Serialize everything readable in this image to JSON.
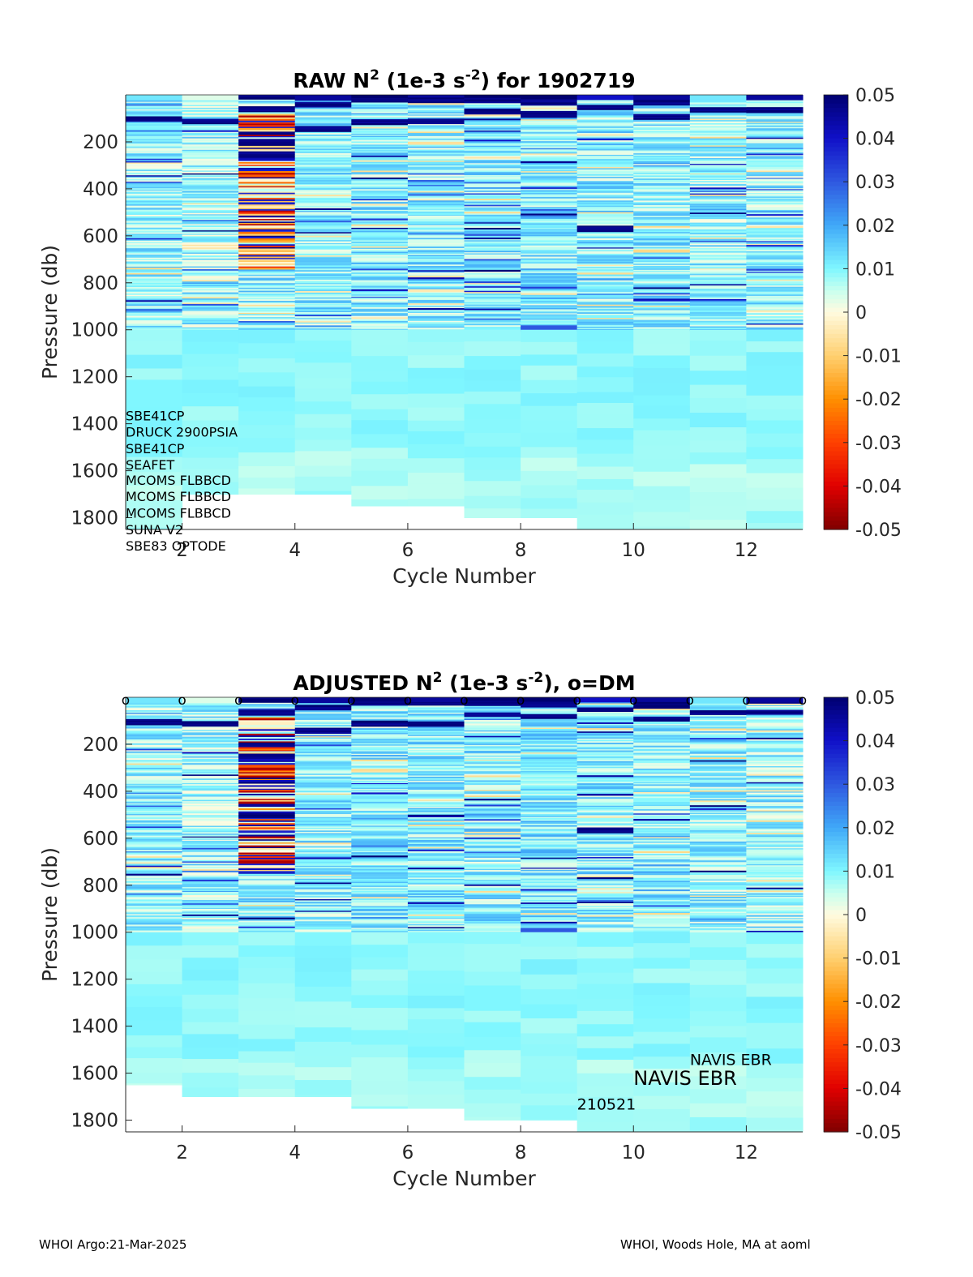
{
  "footer": {
    "left": "WHOI Argo:21-Mar-2025",
    "right": "WHOI, Woods Hole, MA at aoml"
  },
  "colormap_stops": [
    {
      "v": -0.05,
      "color": "#800000"
    },
    {
      "v": -0.04,
      "color": "#e00000"
    },
    {
      "v": -0.03,
      "color": "#ff4000"
    },
    {
      "v": -0.02,
      "color": "#ff9000"
    },
    {
      "v": -0.01,
      "color": "#ffd070"
    },
    {
      "v": 0.0,
      "color": "#fffbe0"
    },
    {
      "v": 0.005,
      "color": "#c8ffee"
    },
    {
      "v": 0.01,
      "color": "#7ff7ff"
    },
    {
      "v": 0.02,
      "color": "#40a8f8"
    },
    {
      "v": 0.03,
      "color": "#2f58e0"
    },
    {
      "v": 0.04,
      "color": "#1010c8"
    },
    {
      "v": 0.05,
      "color": "#000070"
    }
  ],
  "chart_data": [
    {
      "type": "heatmap",
      "title_parts": [
        "RAW N",
        "2",
        " (1e-3 s",
        "-2",
        ") for 1902719"
      ],
      "xlabel": "Cycle Number",
      "ylabel": "Pressure (db)",
      "xlim": [
        1,
        13
      ],
      "ylim": [
        1850,
        0
      ],
      "ylim_note": "y axis reversed (pressure increases downward)",
      "xticks": [
        2,
        4,
        6,
        8,
        10,
        12
      ],
      "yticks": [
        200,
        400,
        600,
        800,
        1000,
        1200,
        1400,
        1600,
        1800
      ],
      "colorbar_ticks": [
        0.05,
        0.04,
        0.03,
        0.02,
        0.01,
        0,
        -0.01,
        -0.02,
        -0.03,
        -0.04,
        -0.05
      ],
      "colorbar_labels": [
        "0.05",
        "0.04",
        "0.03",
        "0.02",
        "0.01",
        "0",
        "-0.01",
        "-0.02",
        "-0.03",
        "-0.04",
        "-0.05"
      ],
      "clim": [
        -0.05,
        0.05
      ],
      "profiles": [
        {
          "cycle": 1,
          "max_pressure": 1850,
          "top_value": 0.012,
          "strong_pressures": [
            100
          ],
          "mean_value": 0.009
        },
        {
          "cycle": 2,
          "max_pressure": 1700,
          "top_value": 0.003,
          "strong_pressures": [
            110
          ],
          "mean_value": 0.008
        },
        {
          "cycle": 3,
          "max_pressure": 1700,
          "top_value": 0.05,
          "strong_pressures": [
            0,
            60,
            200,
            250
          ],
          "mean_value": 0.01,
          "unstable_range": [
            80,
            740
          ]
        },
        {
          "cycle": 4,
          "max_pressure": 1700,
          "top_value": 0.045,
          "strong_pressures": [
            40,
            140
          ],
          "mean_value": 0.01
        },
        {
          "cycle": 5,
          "max_pressure": 1750,
          "top_value": 0.05,
          "strong_pressures": [
            20,
            110
          ],
          "mean_value": 0.01
        },
        {
          "cycle": 6,
          "max_pressure": 1750,
          "top_value": 0.045,
          "strong_pressures": [
            20,
            110
          ],
          "mean_value": 0.01
        },
        {
          "cycle": 7,
          "max_pressure": 1800,
          "top_value": 0.05,
          "strong_pressures": [
            20,
            70
          ],
          "mean_value": 0.01
        },
        {
          "cycle": 8,
          "max_pressure": 1800,
          "top_value": 0.05,
          "strong_pressures": [
            30,
            80
          ],
          "mean_value": 0.011,
          "strong_deep": 990
        },
        {
          "cycle": 9,
          "max_pressure": 1850,
          "top_value": 0.04,
          "strong_pressures": [
            50,
            565
          ],
          "mean_value": 0.01
        },
        {
          "cycle": 10,
          "max_pressure": 1850,
          "top_value": 0.045,
          "strong_pressures": [
            30,
            90
          ],
          "mean_value": 0.01
        },
        {
          "cycle": 11,
          "max_pressure": 1850,
          "top_value": 0.012,
          "strong_pressures": [
            60
          ],
          "mean_value": 0.009
        },
        {
          "cycle": 12,
          "max_pressure": 1850,
          "top_value": 0.045,
          "strong_pressures": [
            60
          ],
          "mean_value": 0.009
        }
      ],
      "annotations": [
        {
          "text": "SBE41CP",
          "x": 1,
          "y": 1385
        },
        {
          "text": "DRUCK 2900PSIA",
          "x": 1,
          "y": 1455
        },
        {
          "text": "SBE41CP",
          "x": 1,
          "y": 1525
        },
        {
          "text": "SEAFET",
          "x": 1,
          "y": 1595
        },
        {
          "text": "MCOMS FLBBCD",
          "x": 1,
          "y": 1660
        },
        {
          "text": "MCOMS FLBBCD",
          "x": 1,
          "y": 1730
        },
        {
          "text": "MCOMS FLBBCD",
          "x": 1,
          "y": 1800
        },
        {
          "text": "SUNA V2",
          "x": 1,
          "y": 1870
        },
        {
          "text": "SBE83 OPTODE",
          "x": 1,
          "y": 1940
        }
      ]
    },
    {
      "type": "heatmap",
      "title_parts": [
        "ADJUSTED N",
        "2",
        " (1e-3 s",
        "-2",
        "), o=DM"
      ],
      "xlabel": "Cycle Number",
      "ylabel": "Pressure (db)",
      "xlim": [
        1,
        13
      ],
      "ylim": [
        1850,
        0
      ],
      "xticks": [
        2,
        4,
        6,
        8,
        10,
        12
      ],
      "yticks": [
        200,
        400,
        600,
        800,
        1000,
        1200,
        1400,
        1600,
        1800
      ],
      "colorbar_ticks": [
        0.05,
        0.04,
        0.03,
        0.02,
        0.01,
        0,
        -0.01,
        -0.02,
        -0.03,
        -0.04,
        -0.05
      ],
      "colorbar_labels": [
        "0.05",
        "0.04",
        "0.03",
        "0.02",
        "0.01",
        "0",
        "-0.01",
        "-0.02",
        "-0.03",
        "-0.04",
        "-0.05"
      ],
      "clim": [
        -0.05,
        0.05
      ],
      "dm_markers": {
        "symbol": "o",
        "cycles": [
          1,
          2,
          3,
          4,
          5,
          6,
          7,
          8,
          9,
          10,
          11,
          12,
          13
        ]
      },
      "profiles": [
        {
          "cycle": 1,
          "max_pressure": 1650,
          "top_value": 0.012,
          "strong_pressures": [
            100
          ],
          "mean_value": 0.009
        },
        {
          "cycle": 2,
          "max_pressure": 1700,
          "top_value": 0.003,
          "strong_pressures": [
            110
          ],
          "mean_value": 0.008
        },
        {
          "cycle": 3,
          "max_pressure": 1700,
          "top_value": 0.05,
          "strong_pressures": [
            0,
            60,
            200,
            250
          ],
          "mean_value": 0.01,
          "unstable_range": [
            80,
            740
          ]
        },
        {
          "cycle": 4,
          "max_pressure": 1700,
          "top_value": 0.045,
          "strong_pressures": [
            40,
            140
          ],
          "mean_value": 0.01
        },
        {
          "cycle": 5,
          "max_pressure": 1750,
          "top_value": 0.05,
          "strong_pressures": [
            20,
            110
          ],
          "mean_value": 0.01
        },
        {
          "cycle": 6,
          "max_pressure": 1750,
          "top_value": 0.045,
          "strong_pressures": [
            20,
            110
          ],
          "mean_value": 0.01
        },
        {
          "cycle": 7,
          "max_pressure": 1800,
          "top_value": 0.05,
          "strong_pressures": [
            20,
            70
          ],
          "mean_value": 0.01
        },
        {
          "cycle": 8,
          "max_pressure": 1800,
          "top_value": 0.05,
          "strong_pressures": [
            30,
            80
          ],
          "mean_value": 0.011,
          "strong_deep": 990
        },
        {
          "cycle": 9,
          "max_pressure": 1850,
          "top_value": 0.04,
          "strong_pressures": [
            50,
            565
          ],
          "mean_value": 0.01
        },
        {
          "cycle": 10,
          "max_pressure": 1850,
          "top_value": 0.045,
          "strong_pressures": [
            30,
            90
          ],
          "mean_value": 0.01
        },
        {
          "cycle": 11,
          "max_pressure": 1850,
          "top_value": 0.012,
          "strong_pressures": [
            60
          ],
          "mean_value": 0.009
        },
        {
          "cycle": 12,
          "max_pressure": 1850,
          "top_value": 0.045,
          "strong_pressures": [
            60
          ],
          "mean_value": 0.009
        }
      ],
      "annotations": [
        {
          "text": "NAVIS EBR",
          "x": 11,
          "y": 1565,
          "size": "small"
        },
        {
          "text": "NAVIS EBR",
          "x": 10,
          "y": 1650,
          "size": "large"
        },
        {
          "text": "210521",
          "x": 9,
          "y": 1755,
          "size": "small"
        }
      ]
    }
  ]
}
